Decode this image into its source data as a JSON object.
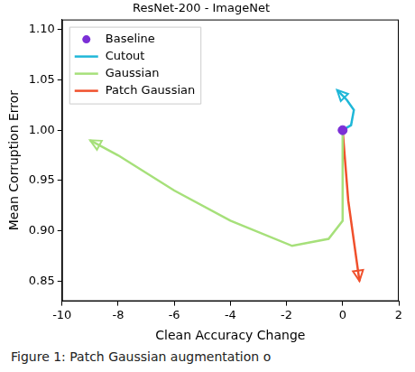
{
  "chart_data": {
    "type": "line",
    "title": "ResNet-200 - ImageNet",
    "x_label": "Clean Accuracy Change",
    "y_label": "Mean Corruption Error",
    "caption": "Figure 1: Patch Gaussian augmentation o",
    "xlim": [
      -10,
      2
    ],
    "xticks": [
      -10,
      -8,
      -6,
      -4,
      -2,
      0,
      2
    ],
    "ylim": [
      0.83,
      1.11
    ],
    "yticks": [
      {
        "value": 0.85,
        "label": "0.85"
      },
      {
        "value": 0.9,
        "label": "0.90"
      },
      {
        "value": 0.95,
        "label": "0.95"
      },
      {
        "value": 1.0,
        "label": "1.00"
      },
      {
        "value": 1.05,
        "label": "1.05"
      },
      {
        "value": 1.1,
        "label": "1.10"
      }
    ],
    "grid": false,
    "legend": "top-left",
    "series": [
      {
        "name": "Baseline",
        "type": "scatter",
        "marker": "circle",
        "color": "#7b2fd6",
        "x": [
          0
        ],
        "values": [
          1.0
        ]
      },
      {
        "name": "Cutout",
        "type": "line",
        "marker": "arrow",
        "color": "#1fb7d8",
        "x": [
          0,
          0.3,
          0.4,
          0.15,
          -0.2
        ],
        "values": [
          1.0,
          1.005,
          1.02,
          1.03,
          1.04
        ]
      },
      {
        "name": "Gaussian",
        "type": "line",
        "marker": "arrow",
        "color": "#a6e07a",
        "x": [
          0,
          0,
          -0.5,
          -1.8,
          -4,
          -6,
          -8,
          -9
        ],
        "values": [
          1.0,
          0.91,
          0.892,
          0.885,
          0.91,
          0.94,
          0.975,
          0.99
        ]
      },
      {
        "name": "Patch Gaussian",
        "type": "line",
        "marker": "arrow",
        "color": "#f0502c",
        "x": [
          0,
          0.2,
          0.6
        ],
        "values": [
          1.0,
          0.93,
          0.85
        ]
      }
    ]
  }
}
